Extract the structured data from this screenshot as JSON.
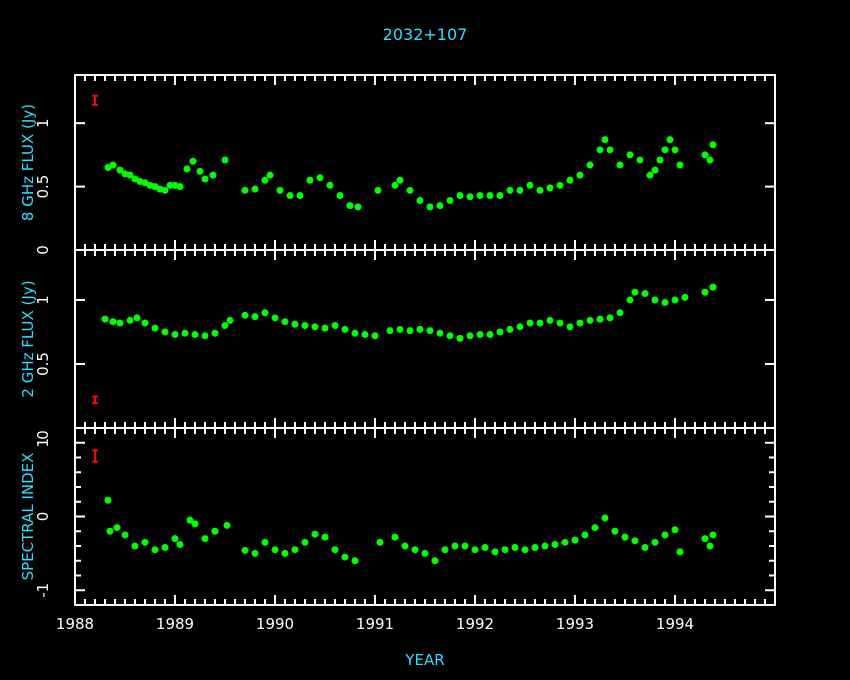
{
  "colors": {
    "background": "#000000",
    "axes": "#ffffff",
    "labels": "#33ddff",
    "points": "#00ff00",
    "error_bar": "#ff0000"
  },
  "chart_data": [
    {
      "type": "scatter",
      "title": "2032+107",
      "ylabel": "8 GHz FLUX (Jy)",
      "xlabel": "",
      "xlim": [
        1988,
        1995
      ],
      "ylim": [
        0,
        1.38
      ],
      "yticks": [
        0,
        0.5,
        1
      ],
      "ytick_labels": [
        "0",
        "0.5",
        "1"
      ],
      "error_bar": {
        "x": 1988.2,
        "y": 1.18,
        "half": 0.02
      },
      "points": [
        [
          1988.33,
          0.65
        ],
        [
          1988.38,
          0.67
        ],
        [
          1988.45,
          0.63
        ],
        [
          1988.5,
          0.6
        ],
        [
          1988.55,
          0.59
        ],
        [
          1988.6,
          0.56
        ],
        [
          1988.65,
          0.54
        ],
        [
          1988.7,
          0.53
        ],
        [
          1988.75,
          0.51
        ],
        [
          1988.8,
          0.5
        ],
        [
          1988.85,
          0.48
        ],
        [
          1988.9,
          0.47
        ],
        [
          1988.95,
          0.51
        ],
        [
          1989.0,
          0.51
        ],
        [
          1989.05,
          0.5
        ],
        [
          1989.12,
          0.64
        ],
        [
          1989.18,
          0.7
        ],
        [
          1989.25,
          0.62
        ],
        [
          1989.3,
          0.56
        ],
        [
          1989.38,
          0.59
        ],
        [
          1989.5,
          0.71
        ],
        [
          1989.7,
          0.47
        ],
        [
          1989.8,
          0.48
        ],
        [
          1989.9,
          0.55
        ],
        [
          1989.95,
          0.59
        ],
        [
          1990.05,
          0.47
        ],
        [
          1990.15,
          0.43
        ],
        [
          1990.25,
          0.43
        ],
        [
          1990.35,
          0.55
        ],
        [
          1990.45,
          0.57
        ],
        [
          1990.55,
          0.51
        ],
        [
          1990.65,
          0.43
        ],
        [
          1990.75,
          0.35
        ],
        [
          1990.83,
          0.34
        ],
        [
          1991.03,
          0.47
        ],
        [
          1991.2,
          0.51
        ],
        [
          1991.25,
          0.55
        ],
        [
          1991.35,
          0.47
        ],
        [
          1991.45,
          0.39
        ],
        [
          1991.55,
          0.34
        ],
        [
          1991.65,
          0.35
        ],
        [
          1991.75,
          0.39
        ],
        [
          1991.85,
          0.43
        ],
        [
          1991.95,
          0.42
        ],
        [
          1992.05,
          0.43
        ],
        [
          1992.15,
          0.43
        ],
        [
          1992.25,
          0.43
        ],
        [
          1992.35,
          0.47
        ],
        [
          1992.45,
          0.47
        ],
        [
          1992.55,
          0.51
        ],
        [
          1992.65,
          0.47
        ],
        [
          1992.75,
          0.49
        ],
        [
          1992.85,
          0.51
        ],
        [
          1992.95,
          0.55
        ],
        [
          1993.05,
          0.59
        ],
        [
          1993.15,
          0.67
        ],
        [
          1993.25,
          0.79
        ],
        [
          1993.3,
          0.87
        ],
        [
          1993.35,
          0.79
        ],
        [
          1993.45,
          0.67
        ],
        [
          1993.55,
          0.75
        ],
        [
          1993.65,
          0.71
        ],
        [
          1993.75,
          0.59
        ],
        [
          1993.8,
          0.63
        ],
        [
          1993.85,
          0.71
        ],
        [
          1993.9,
          0.79
        ],
        [
          1993.95,
          0.87
        ],
        [
          1994.0,
          0.79
        ],
        [
          1994.05,
          0.67
        ],
        [
          1994.3,
          0.75
        ],
        [
          1994.35,
          0.71
        ],
        [
          1994.38,
          0.83
        ]
      ]
    },
    {
      "type": "scatter",
      "ylabel": "2 GHz FLUX (Jy)",
      "xlabel": "",
      "xlim": [
        1988,
        1995
      ],
      "ylim": [
        0,
        1.39
      ],
      "yticks": [
        0.5,
        1
      ],
      "ytick_labels": [
        "0.5",
        "1"
      ],
      "bottom_tick_label": "0",
      "error_bar": {
        "x": 1988.2,
        "y": 0.22,
        "half": 0.01
      },
      "points": [
        [
          1988.3,
          0.85
        ],
        [
          1988.38,
          0.83
        ],
        [
          1988.45,
          0.82
        ],
        [
          1988.55,
          0.84
        ],
        [
          1988.62,
          0.86
        ],
        [
          1988.7,
          0.82
        ],
        [
          1988.8,
          0.78
        ],
        [
          1988.9,
          0.75
        ],
        [
          1989.0,
          0.73
        ],
        [
          1989.1,
          0.74
        ],
        [
          1989.2,
          0.73
        ],
        [
          1989.3,
          0.72
        ],
        [
          1989.4,
          0.74
        ],
        [
          1989.5,
          0.8
        ],
        [
          1989.55,
          0.84
        ],
        [
          1989.7,
          0.88
        ],
        [
          1989.8,
          0.87
        ],
        [
          1989.9,
          0.9
        ],
        [
          1990.0,
          0.86
        ],
        [
          1990.1,
          0.83
        ],
        [
          1990.2,
          0.81
        ],
        [
          1990.3,
          0.8
        ],
        [
          1990.4,
          0.79
        ],
        [
          1990.5,
          0.78
        ],
        [
          1990.6,
          0.8
        ],
        [
          1990.7,
          0.77
        ],
        [
          1990.8,
          0.74
        ],
        [
          1990.9,
          0.73
        ],
        [
          1991.0,
          0.72
        ],
        [
          1991.15,
          0.76
        ],
        [
          1991.25,
          0.77
        ],
        [
          1991.35,
          0.76
        ],
        [
          1991.45,
          0.77
        ],
        [
          1991.55,
          0.76
        ],
        [
          1991.65,
          0.74
        ],
        [
          1991.75,
          0.72
        ],
        [
          1991.85,
          0.7
        ],
        [
          1991.95,
          0.72
        ],
        [
          1992.05,
          0.73
        ],
        [
          1992.15,
          0.73
        ],
        [
          1992.25,
          0.75
        ],
        [
          1992.35,
          0.77
        ],
        [
          1992.45,
          0.79
        ],
        [
          1992.55,
          0.82
        ],
        [
          1992.65,
          0.82
        ],
        [
          1992.75,
          0.84
        ],
        [
          1992.85,
          0.82
        ],
        [
          1992.95,
          0.79
        ],
        [
          1993.05,
          0.82
        ],
        [
          1993.15,
          0.84
        ],
        [
          1993.25,
          0.85
        ],
        [
          1993.35,
          0.86
        ],
        [
          1993.45,
          0.9
        ],
        [
          1993.55,
          1.0
        ],
        [
          1993.6,
          1.06
        ],
        [
          1993.7,
          1.05
        ],
        [
          1993.8,
          1.0
        ],
        [
          1993.9,
          0.98
        ],
        [
          1994.0,
          1.0
        ],
        [
          1994.1,
          1.02
        ],
        [
          1994.3,
          1.06
        ],
        [
          1994.38,
          1.1
        ]
      ]
    },
    {
      "type": "scatter",
      "ylabel": "SPECTRAL INDEX",
      "xlabel": "YEAR",
      "xlim": [
        1988,
        1995
      ],
      "ylim": [
        -1.2,
        1.2
      ],
      "yticks": [
        -1,
        0,
        1
      ],
      "ytick_labels": [
        "-1",
        "0",
        "1"
      ],
      "xticks": [
        1988,
        1989,
        1990,
        1991,
        1992,
        1993,
        1994
      ],
      "xtick_labels": [
        "1988",
        "1989",
        "1990",
        "1991",
        "1992",
        "1993",
        "1994"
      ],
      "error_bar": {
        "x": 1988.2,
        "y": 0.82,
        "half": 0.05
      },
      "points": [
        [
          1988.33,
          0.22
        ],
        [
          1988.35,
          -0.2
        ],
        [
          1988.42,
          -0.15
        ],
        [
          1988.5,
          -0.25
        ],
        [
          1988.6,
          -0.4
        ],
        [
          1988.7,
          -0.35
        ],
        [
          1988.8,
          -0.45
        ],
        [
          1988.9,
          -0.42
        ],
        [
          1989.0,
          -0.3
        ],
        [
          1989.05,
          -0.38
        ],
        [
          1989.15,
          -0.05
        ],
        [
          1989.2,
          -0.1
        ],
        [
          1989.3,
          -0.3
        ],
        [
          1989.4,
          -0.2
        ],
        [
          1989.52,
          -0.12
        ],
        [
          1989.7,
          -0.46
        ],
        [
          1989.8,
          -0.5
        ],
        [
          1989.9,
          -0.35
        ],
        [
          1990.0,
          -0.45
        ],
        [
          1990.1,
          -0.5
        ],
        [
          1990.2,
          -0.45
        ],
        [
          1990.3,
          -0.35
        ],
        [
          1990.4,
          -0.24
        ],
        [
          1990.5,
          -0.28
        ],
        [
          1990.6,
          -0.45
        ],
        [
          1990.7,
          -0.55
        ],
        [
          1990.8,
          -0.6
        ],
        [
          1991.05,
          -0.35
        ],
        [
          1991.2,
          -0.28
        ],
        [
          1991.3,
          -0.4
        ],
        [
          1991.4,
          -0.45
        ],
        [
          1991.5,
          -0.5
        ],
        [
          1991.6,
          -0.6
        ],
        [
          1991.7,
          -0.45
        ],
        [
          1991.8,
          -0.4
        ],
        [
          1991.9,
          -0.4
        ],
        [
          1992.0,
          -0.45
        ],
        [
          1992.1,
          -0.42
        ],
        [
          1992.2,
          -0.48
        ],
        [
          1992.3,
          -0.45
        ],
        [
          1992.4,
          -0.42
        ],
        [
          1992.5,
          -0.45
        ],
        [
          1992.6,
          -0.42
        ],
        [
          1992.7,
          -0.4
        ],
        [
          1992.8,
          -0.38
        ],
        [
          1992.9,
          -0.35
        ],
        [
          1993.0,
          -0.32
        ],
        [
          1993.1,
          -0.25
        ],
        [
          1993.2,
          -0.15
        ],
        [
          1993.3,
          -0.02
        ],
        [
          1993.4,
          -0.2
        ],
        [
          1993.5,
          -0.28
        ],
        [
          1993.6,
          -0.33
        ],
        [
          1993.7,
          -0.42
        ],
        [
          1993.8,
          -0.35
        ],
        [
          1993.9,
          -0.25
        ],
        [
          1994.0,
          -0.18
        ],
        [
          1994.05,
          -0.48
        ],
        [
          1994.3,
          -0.3
        ],
        [
          1994.35,
          -0.4
        ],
        [
          1994.38,
          -0.25
        ]
      ]
    }
  ]
}
